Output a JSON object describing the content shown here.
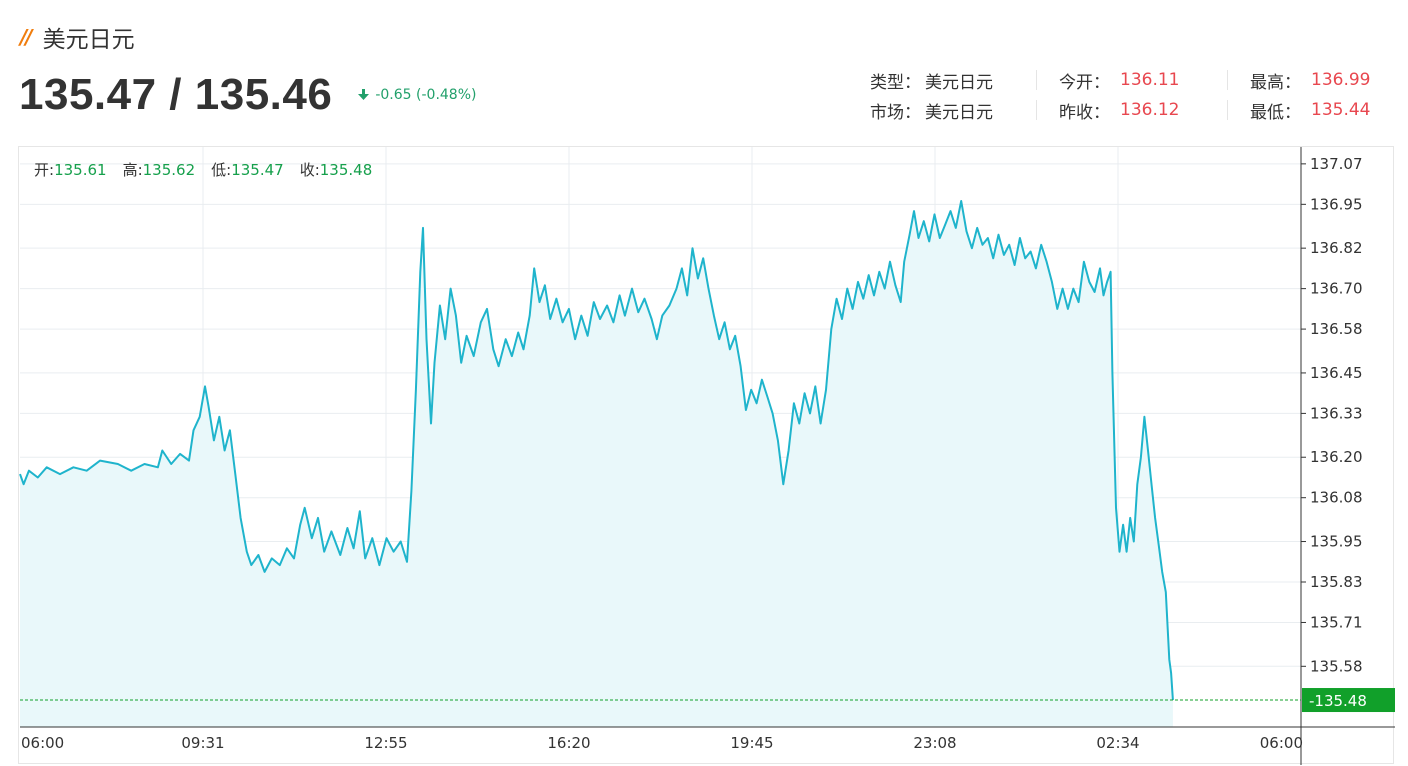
{
  "header": {
    "title": "美元日元",
    "price": "135.47 / 135.46",
    "change": "-0.65 (-0.48%)"
  },
  "stats": [
    {
      "label": "类型：",
      "value": "美元日元",
      "style": "plain"
    },
    {
      "label": "今开：",
      "value": "136.11",
      "style": "red"
    },
    {
      "label": "最高：",
      "value": "136.99",
      "style": "red"
    },
    {
      "label": "市场：",
      "value": "美元日元",
      "style": "plain"
    },
    {
      "label": "昨收：",
      "value": "136.12",
      "style": "red"
    },
    {
      "label": "最低：",
      "value": "135.44",
      "style": "red"
    }
  ],
  "ohlc": {
    "open_label": "开:",
    "open": "135.61",
    "high_label": "高:",
    "high": "135.62",
    "low_label": "低:",
    "low": "135.47",
    "close_label": "收:",
    "close": "135.48"
  },
  "colors": {
    "line": "#1fb4cc",
    "fill": "#e9f8fa",
    "up_red": "#e8474f",
    "down_green": "#22a06b",
    "last_price_bg": "#11a02a"
  },
  "chart_data": {
    "type": "area",
    "x_ticks": [
      "06:00",
      "09:31",
      "12:55",
      "16:20",
      "19:45",
      "23:08",
      "02:34",
      "06:00"
    ],
    "y_ticks": [
      "137.07",
      "136.95",
      "136.82",
      "136.70",
      "136.58",
      "136.45",
      "136.33",
      "136.20",
      "136.08",
      "135.95",
      "135.83",
      "135.71",
      "135.58"
    ],
    "ylim": [
      135.4,
      137.12
    ],
    "xlim": [
      0,
      1440
    ],
    "last_price": "135.48",
    "points": [
      [
        0,
        136.15
      ],
      [
        4,
        136.12
      ],
      [
        10,
        136.16
      ],
      [
        20,
        136.14
      ],
      [
        30,
        136.17
      ],
      [
        45,
        136.15
      ],
      [
        60,
        136.17
      ],
      [
        75,
        136.16
      ],
      [
        90,
        136.19
      ],
      [
        110,
        136.18
      ],
      [
        125,
        136.16
      ],
      [
        140,
        136.18
      ],
      [
        155,
        136.17
      ],
      [
        160,
        136.22
      ],
      [
        170,
        136.18
      ],
      [
        180,
        136.21
      ],
      [
        190,
        136.19
      ],
      [
        195,
        136.28
      ],
      [
        202,
        136.32
      ],
      [
        208,
        136.41
      ],
      [
        212,
        136.35
      ],
      [
        218,
        136.25
      ],
      [
        224,
        136.32
      ],
      [
        230,
        136.22
      ],
      [
        236,
        136.28
      ],
      [
        242,
        136.15
      ],
      [
        248,
        136.02
      ],
      [
        255,
        135.92
      ],
      [
        260,
        135.88
      ],
      [
        268,
        135.91
      ],
      [
        275,
        135.86
      ],
      [
        283,
        135.9
      ],
      [
        292,
        135.88
      ],
      [
        300,
        135.93
      ],
      [
        308,
        135.9
      ],
      [
        315,
        136.0
      ],
      [
        320,
        136.05
      ],
      [
        328,
        135.96
      ],
      [
        335,
        136.02
      ],
      [
        342,
        135.92
      ],
      [
        350,
        135.98
      ],
      [
        360,
        135.91
      ],
      [
        368,
        135.99
      ],
      [
        375,
        135.93
      ],
      [
        382,
        136.04
      ],
      [
        388,
        135.9
      ],
      [
        396,
        135.96
      ],
      [
        404,
        135.88
      ],
      [
        412,
        135.96
      ],
      [
        420,
        135.92
      ],
      [
        428,
        135.95
      ],
      [
        435,
        135.89
      ],
      [
        440,
        136.1
      ],
      [
        445,
        136.4
      ],
      [
        450,
        136.75
      ],
      [
        453,
        136.88
      ],
      [
        457,
        136.55
      ],
      [
        462,
        136.3
      ],
      [
        466,
        136.48
      ],
      [
        472,
        136.65
      ],
      [
        478,
        136.55
      ],
      [
        484,
        136.7
      ],
      [
        490,
        136.62
      ],
      [
        496,
        136.48
      ],
      [
        502,
        136.56
      ],
      [
        510,
        136.5
      ],
      [
        518,
        136.6
      ],
      [
        525,
        136.64
      ],
      [
        532,
        136.52
      ],
      [
        538,
        136.47
      ],
      [
        546,
        136.55
      ],
      [
        553,
        136.5
      ],
      [
        560,
        136.57
      ],
      [
        566,
        136.52
      ],
      [
        573,
        136.62
      ],
      [
        578,
        136.76
      ],
      [
        584,
        136.66
      ],
      [
        590,
        136.71
      ],
      [
        596,
        136.61
      ],
      [
        603,
        136.67
      ],
      [
        610,
        136.6
      ],
      [
        617,
        136.64
      ],
      [
        624,
        136.55
      ],
      [
        631,
        136.62
      ],
      [
        638,
        136.56
      ],
      [
        645,
        136.66
      ],
      [
        652,
        136.61
      ],
      [
        660,
        136.65
      ],
      [
        667,
        136.6
      ],
      [
        674,
        136.68
      ],
      [
        680,
        136.62
      ],
      [
        688,
        136.7
      ],
      [
        695,
        136.63
      ],
      [
        702,
        136.67
      ],
      [
        710,
        136.61
      ],
      [
        716,
        136.55
      ],
      [
        722,
        136.62
      ],
      [
        730,
        136.65
      ],
      [
        738,
        136.7
      ],
      [
        744,
        136.76
      ],
      [
        750,
        136.68
      ],
      [
        756,
        136.82
      ],
      [
        762,
        136.73
      ],
      [
        768,
        136.79
      ],
      [
        774,
        136.7
      ],
      [
        780,
        136.62
      ],
      [
        786,
        136.55
      ],
      [
        792,
        136.6
      ],
      [
        798,
        136.52
      ],
      [
        804,
        136.56
      ],
      [
        810,
        136.47
      ],
      [
        816,
        136.34
      ],
      [
        822,
        136.4
      ],
      [
        828,
        136.36
      ],
      [
        834,
        136.43
      ],
      [
        840,
        136.38
      ],
      [
        846,
        136.33
      ],
      [
        852,
        136.25
      ],
      [
        858,
        136.12
      ],
      [
        864,
        136.22
      ],
      [
        870,
        136.36
      ],
      [
        876,
        136.3
      ],
      [
        882,
        136.39
      ],
      [
        888,
        136.33
      ],
      [
        894,
        136.41
      ],
      [
        900,
        136.3
      ],
      [
        906,
        136.4
      ],
      [
        912,
        136.58
      ],
      [
        918,
        136.67
      ],
      [
        924,
        136.61
      ],
      [
        930,
        136.7
      ],
      [
        936,
        136.64
      ],
      [
        942,
        136.72
      ],
      [
        948,
        136.67
      ],
      [
        954,
        136.74
      ],
      [
        960,
        136.68
      ],
      [
        966,
        136.75
      ],
      [
        972,
        136.7
      ],
      [
        978,
        136.78
      ],
      [
        984,
        136.71
      ],
      [
        990,
        136.66
      ],
      [
        994,
        136.78
      ],
      [
        1000,
        136.86
      ],
      [
        1005,
        136.93
      ],
      [
        1010,
        136.85
      ],
      [
        1016,
        136.9
      ],
      [
        1022,
        136.84
      ],
      [
        1028,
        136.92
      ],
      [
        1034,
        136.85
      ],
      [
        1040,
        136.89
      ],
      [
        1046,
        136.93
      ],
      [
        1052,
        136.88
      ],
      [
        1058,
        136.96
      ],
      [
        1064,
        136.87
      ],
      [
        1070,
        136.82
      ],
      [
        1076,
        136.88
      ],
      [
        1082,
        136.83
      ],
      [
        1088,
        136.85
      ],
      [
        1094,
        136.79
      ],
      [
        1100,
        136.86
      ],
      [
        1106,
        136.8
      ],
      [
        1112,
        136.83
      ],
      [
        1118,
        136.77
      ],
      [
        1124,
        136.85
      ],
      [
        1130,
        136.79
      ],
      [
        1136,
        136.81
      ],
      [
        1142,
        136.76
      ],
      [
        1148,
        136.83
      ],
      [
        1154,
        136.78
      ],
      [
        1160,
        136.72
      ],
      [
        1166,
        136.64
      ],
      [
        1172,
        136.7
      ],
      [
        1178,
        136.64
      ],
      [
        1184,
        136.7
      ],
      [
        1190,
        136.66
      ],
      [
        1196,
        136.78
      ],
      [
        1202,
        136.72
      ],
      [
        1208,
        136.69
      ],
      [
        1214,
        136.76
      ],
      [
        1218,
        136.68
      ],
      [
        1222,
        136.72
      ],
      [
        1226,
        136.75
      ],
      [
        1228,
        136.45
      ],
      [
        1232,
        136.05
      ],
      [
        1236,
        135.92
      ],
      [
        1240,
        136.0
      ],
      [
        1244,
        135.92
      ],
      [
        1248,
        136.02
      ],
      [
        1252,
        135.95
      ],
      [
        1256,
        136.12
      ],
      [
        1260,
        136.2
      ],
      [
        1264,
        136.32
      ],
      [
        1268,
        136.22
      ],
      [
        1272,
        136.12
      ],
      [
        1276,
        136.02
      ],
      [
        1280,
        135.94
      ],
      [
        1284,
        135.86
      ],
      [
        1288,
        135.8
      ],
      [
        1292,
        135.6
      ],
      [
        1294,
        135.56
      ],
      [
        1296,
        135.48
      ]
    ]
  }
}
